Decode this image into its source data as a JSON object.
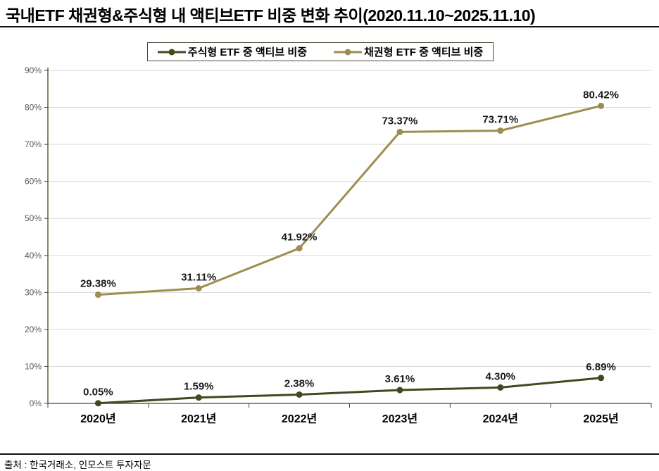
{
  "title": "국내ETF 채권형&주식형 내 액티브ETF 비중 변화 추이(2020.11.10~2025.11.10)",
  "source": "출처 : 한국거래소, 인모스트 투자자문",
  "colors": {
    "equity_series": "#3f4a1f",
    "bond_series": "#9e8d51",
    "gridline": "#d9d9d9",
    "axis": "#3f4a1f",
    "data_label": "#1a1a1a",
    "ytick_text": "#595959",
    "xtick_text": "#000000"
  },
  "chart_data": {
    "type": "line",
    "categories": [
      "2020년",
      "2021년",
      "2022년",
      "2023년",
      "2024년",
      "2025년"
    ],
    "series": [
      {
        "name": "주식형 ETF 중 액티브 비중",
        "color_key": "equity_series",
        "values": [
          0.05,
          1.59,
          2.38,
          3.61,
          4.3,
          6.89
        ],
        "labels": [
          "0.05%",
          "1.59%",
          "2.38%",
          "3.61%",
          "4.30%",
          "6.89%"
        ]
      },
      {
        "name": "채권형 ETF 중 액티브 비중",
        "color_key": "bond_series",
        "values": [
          29.38,
          31.11,
          41.92,
          73.37,
          73.71,
          80.42
        ],
        "labels": [
          "29.38%",
          "31.11%",
          "41.92%",
          "73.37%",
          "73.71%",
          "80.42%"
        ]
      }
    ],
    "ylim": [
      0,
      90
    ],
    "ytick_step": 10,
    "ytick_labels": [
      "0%",
      "10%",
      "20%",
      "30%",
      "40%",
      "50%",
      "60%",
      "70%",
      "80%",
      "90%"
    ],
    "grid": true,
    "legend_position": "top"
  }
}
